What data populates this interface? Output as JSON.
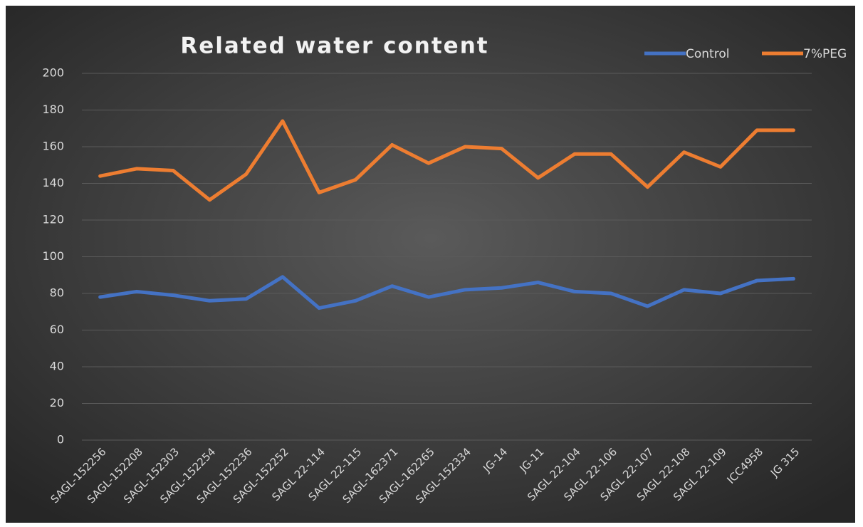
{
  "chart_data": {
    "type": "line",
    "title": "Related water content",
    "categories": [
      "SAGL-152256",
      "SAGL-152208",
      "SAGL-152303",
      "SAGL-152254",
      "SAGL-152236",
      "SAGL-152252",
      "SAGL 22-114",
      "SAGL 22-115",
      "SAGL-162371",
      "SAGL-162265",
      "SAGL-152334",
      "JG-14",
      "JG-11",
      "SAGL 22-104",
      "SAGL 22-106",
      "SAGL 22-107",
      "SAGL 22-108",
      "SAGL 22-109",
      "ICC4958",
      "JG 315"
    ],
    "series": [
      {
        "name": "Control",
        "color": "#4472c4",
        "values": [
          78,
          81,
          79,
          76,
          77,
          89,
          72,
          76,
          84,
          78,
          82,
          83,
          86,
          81,
          80,
          73,
          82,
          80,
          87,
          88
        ]
      },
      {
        "name": "7%PEG",
        "color": "#ed7d31",
        "values": [
          144,
          148,
          147,
          131,
          145,
          174,
          135,
          142,
          161,
          151,
          160,
          159,
          143,
          156,
          156,
          138,
          157,
          149,
          169,
          169
        ]
      }
    ],
    "ylim": [
      0,
      200
    ],
    "yticks": [
      0,
      20,
      40,
      60,
      80,
      100,
      120,
      140,
      160,
      180,
      200
    ],
    "grid": true,
    "legend": "top-right"
  }
}
